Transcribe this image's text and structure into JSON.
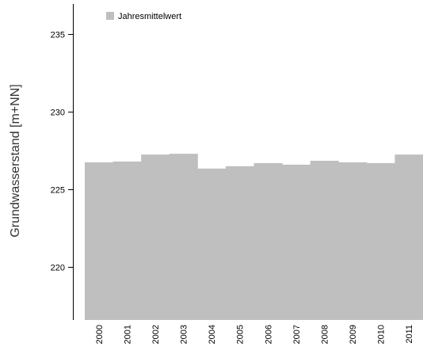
{
  "chart_data": {
    "type": "bar",
    "title": "",
    "xlabel": "",
    "ylabel": "Grundwasserstand [m+NN]",
    "categories": [
      "2000",
      "2001",
      "2002",
      "2003",
      "2004",
      "2005",
      "2006",
      "2007",
      "2008",
      "2009",
      "2010",
      "2011"
    ],
    "series": [
      {
        "name": "Jahresmittelwert",
        "values": [
          226.75,
          226.8,
          227.25,
          227.3,
          226.35,
          226.5,
          226.7,
          226.6,
          226.85,
          226.75,
          226.7,
          227.25
        ]
      }
    ],
    "ylim": [
      216.6,
      237.2
    ],
    "yticks": [
      220,
      225,
      230,
      235
    ],
    "legend": "top-left",
    "grid": false,
    "colors": {
      "bar": "#bfbfbf",
      "axis": "#000000"
    }
  }
}
